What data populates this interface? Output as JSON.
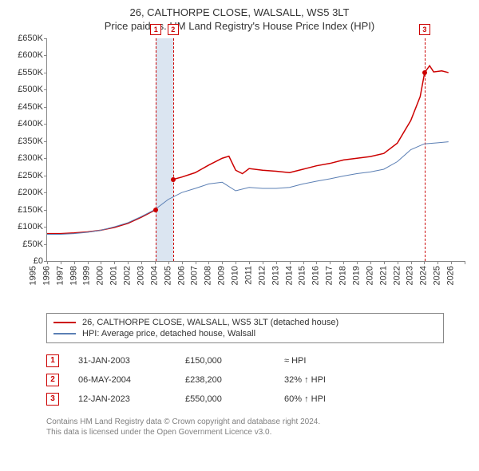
{
  "title": "26, CALTHORPE CLOSE, WALSALL, WS5 3LT",
  "subtitle": "Price paid vs. HM Land Registry's House Price Index (HPI)",
  "chart": {
    "type": "line",
    "x_years": [
      1995,
      1996,
      1997,
      1998,
      1999,
      2000,
      2001,
      2002,
      2003,
      2004,
      2005,
      2006,
      2007,
      2008,
      2009,
      2010,
      2011,
      2012,
      2013,
      2014,
      2015,
      2016,
      2017,
      2018,
      2019,
      2020,
      2021,
      2022,
      2023,
      2024,
      2025,
      2026
    ],
    "xlim": [
      1995,
      2026
    ],
    "ylim": [
      0,
      650000
    ],
    "ytick_step": 50000,
    "ytick_labels": [
      "£0",
      "£50K",
      "£100K",
      "£150K",
      "£200K",
      "£250K",
      "£300K",
      "£350K",
      "£400K",
      "£450K",
      "£500K",
      "£550K",
      "£600K",
      "£650K"
    ],
    "background_color": "#ffffff",
    "axis_color": "#888888",
    "series": {
      "property": {
        "label": "26, CALTHORPE CLOSE, WALSALL, WS5 3LT (detached house)",
        "color": "#cc0000",
        "line_width": 1.5,
        "points": [
          [
            1995.0,
            80000
          ],
          [
            1996.0,
            80000
          ],
          [
            1997.0,
            82000
          ],
          [
            1998.0,
            85000
          ],
          [
            1999.0,
            90000
          ],
          [
            2000.0,
            98000
          ],
          [
            2001.0,
            110000
          ],
          [
            2002.0,
            128000
          ],
          [
            2003.08,
            150000
          ],
          [
            2004.35,
            238200
          ],
          [
            2005.0,
            245000
          ],
          [
            2006.0,
            258000
          ],
          [
            2007.0,
            280000
          ],
          [
            2008.0,
            300000
          ],
          [
            2008.5,
            306000
          ],
          [
            2009.0,
            265000
          ],
          [
            2009.5,
            255000
          ],
          [
            2010.0,
            270000
          ],
          [
            2011.0,
            265000
          ],
          [
            2012.0,
            262000
          ],
          [
            2013.0,
            258000
          ],
          [
            2014.0,
            268000
          ],
          [
            2015.0,
            278000
          ],
          [
            2016.0,
            285000
          ],
          [
            2017.0,
            295000
          ],
          [
            2018.0,
            300000
          ],
          [
            2019.0,
            305000
          ],
          [
            2020.0,
            314000
          ],
          [
            2021.0,
            344000
          ],
          [
            2022.0,
            410000
          ],
          [
            2022.7,
            480000
          ],
          [
            2023.03,
            550000
          ],
          [
            2023.4,
            570000
          ],
          [
            2023.7,
            552000
          ],
          [
            2024.3,
            555000
          ],
          [
            2024.8,
            550000
          ]
        ],
        "sale_dots": [
          [
            2003.08,
            150000
          ],
          [
            2004.35,
            238200
          ],
          [
            2023.03,
            550000
          ]
        ]
      },
      "hpi": {
        "label": "HPI: Average price, detached house, Walsall",
        "color": "#5b7fb4",
        "line_width": 1,
        "points": [
          [
            1995.0,
            78000
          ],
          [
            1996.0,
            78000
          ],
          [
            1997.0,
            80000
          ],
          [
            1998.0,
            84000
          ],
          [
            1999.0,
            90000
          ],
          [
            2000.0,
            100000
          ],
          [
            2001.0,
            112000
          ],
          [
            2002.0,
            130000
          ],
          [
            2003.0,
            150000
          ],
          [
            2004.0,
            180000
          ],
          [
            2005.0,
            200000
          ],
          [
            2006.0,
            212000
          ],
          [
            2007.0,
            225000
          ],
          [
            2008.0,
            230000
          ],
          [
            2009.0,
            205000
          ],
          [
            2010.0,
            215000
          ],
          [
            2011.0,
            212000
          ],
          [
            2012.0,
            212000
          ],
          [
            2013.0,
            215000
          ],
          [
            2014.0,
            225000
          ],
          [
            2015.0,
            233000
          ],
          [
            2016.0,
            240000
          ],
          [
            2017.0,
            248000
          ],
          [
            2018.0,
            255000
          ],
          [
            2019.0,
            260000
          ],
          [
            2020.0,
            268000
          ],
          [
            2021.0,
            290000
          ],
          [
            2022.0,
            325000
          ],
          [
            2023.0,
            342000
          ],
          [
            2024.0,
            345000
          ],
          [
            2024.8,
            348000
          ]
        ]
      }
    },
    "gap_band": {
      "start": 2003.08,
      "end": 2004.35,
      "color": "#dbe5f1"
    },
    "vlines_color": "#cc0000",
    "event_markers": [
      {
        "n": "1",
        "year": 2003.08
      },
      {
        "n": "2",
        "year": 2004.35
      },
      {
        "n": "3",
        "year": 2023.03
      }
    ]
  },
  "legend": {
    "series1": "26, CALTHORPE CLOSE, WALSALL, WS5 3LT (detached house)",
    "series2": "HPI: Average price, detached house, Walsall"
  },
  "events": [
    {
      "n": "1",
      "date": "31-JAN-2003",
      "price": "£150,000",
      "diff": "≈ HPI"
    },
    {
      "n": "2",
      "date": "06-MAY-2004",
      "price": "£238,200",
      "diff": "32% ↑ HPI"
    },
    {
      "n": "3",
      "date": "12-JAN-2023",
      "price": "£550,000",
      "diff": "60% ↑ HPI"
    }
  ],
  "footer": {
    "line1": "Contains HM Land Registry data © Crown copyright and database right 2024.",
    "line2": "This data is licensed under the Open Government Licence v3.0."
  }
}
